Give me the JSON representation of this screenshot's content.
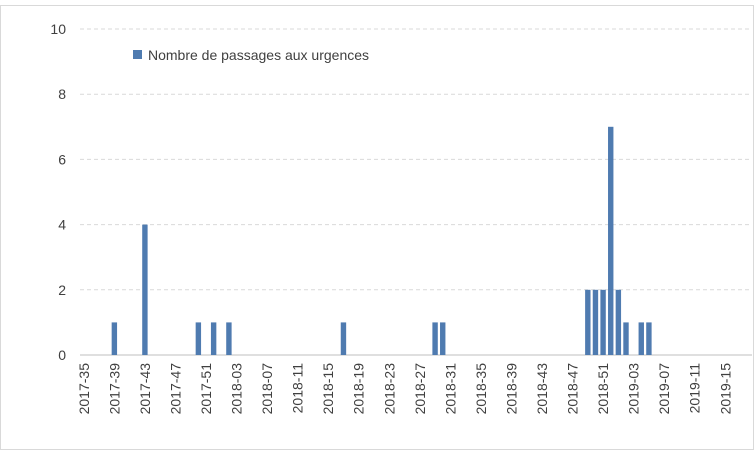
{
  "chart_data": {
    "type": "bar",
    "categories": [
      "2017-35",
      null,
      null,
      null,
      "2017-39",
      null,
      null,
      null,
      "2017-43",
      null,
      null,
      null,
      "2017-47",
      null,
      null,
      null,
      "2017-51",
      null,
      null,
      null,
      "2018-03",
      null,
      null,
      null,
      "2018-07",
      null,
      null,
      null,
      "2018-11",
      null,
      null,
      null,
      "2018-15",
      null,
      null,
      null,
      "2018-19",
      null,
      null,
      null,
      "2018-23",
      null,
      null,
      null,
      "2018-27",
      null,
      null,
      null,
      "2018-31",
      null,
      null,
      null,
      "2018-35",
      null,
      null,
      null,
      "2018-39",
      null,
      null,
      null,
      "2018-43",
      null,
      null,
      null,
      "2018-47",
      null,
      null,
      null,
      "2018-51",
      null,
      null,
      null,
      "2019-03",
      null,
      null,
      null,
      "2019-07",
      null,
      null,
      null,
      "2019-11",
      null,
      null,
      null,
      "2019-15",
      null,
      null,
      null
    ],
    "series": [
      {
        "name": "Nombre de passages aux urgences",
        "color": "#4f7bb0",
        "values": [
          0,
          0,
          0,
          0,
          1,
          0,
          0,
          0,
          4,
          0,
          0,
          0,
          0,
          0,
          0,
          1,
          0,
          1,
          0,
          1,
          0,
          0,
          0,
          0,
          0,
          0,
          0,
          0,
          0,
          0,
          0,
          0,
          0,
          0,
          1,
          0,
          0,
          0,
          0,
          0,
          0,
          0,
          0,
          0,
          0,
          0,
          1,
          1,
          0,
          0,
          0,
          0,
          0,
          0,
          0,
          0,
          0,
          0,
          0,
          0,
          0,
          0,
          0,
          0,
          0,
          0,
          2,
          2,
          2,
          7,
          2,
          1,
          0,
          1,
          1,
          0,
          0,
          0,
          0,
          0,
          0,
          0,
          0,
          0,
          0,
          0,
          0,
          0
        ]
      }
    ],
    "ylim": [
      0,
      10
    ],
    "yticks": [
      0,
      2,
      4,
      6,
      8,
      10
    ],
    "grid": true,
    "legend": "top-left"
  }
}
